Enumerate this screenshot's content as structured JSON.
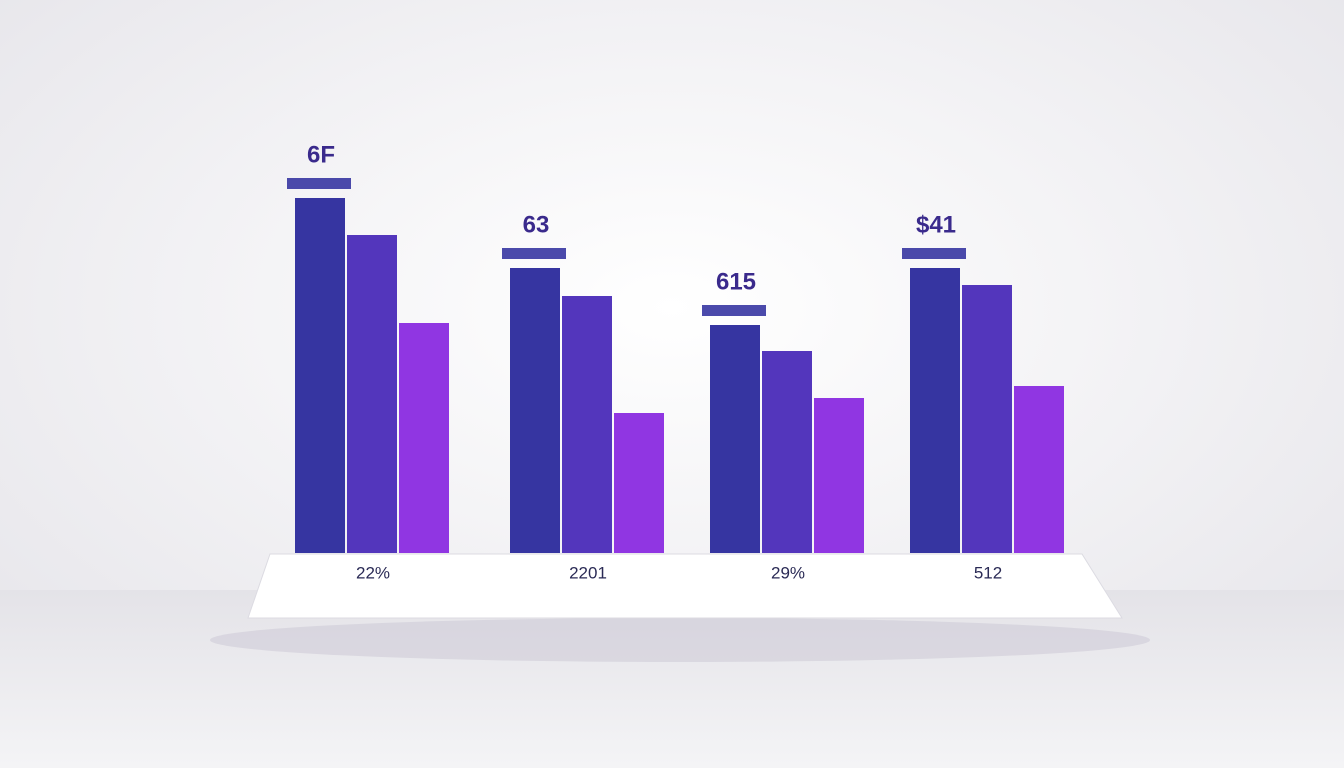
{
  "chart_data": {
    "type": "bar",
    "categories": [
      "22%",
      "2201",
      "29%",
      "512"
    ],
    "annotations": [
      "6F",
      "63",
      "615",
      "$41"
    ],
    "series": [
      {
        "color": "#2b2a9c",
        "values": [
          355,
          285,
          228,
          285
        ]
      },
      {
        "color": "#4a2bb8",
        "values": [
          318,
          257,
          202,
          268
        ]
      },
      {
        "color": "#8a2be0",
        "values": [
          230,
          140,
          155,
          167
        ]
      }
    ],
    "ylim": [
      0,
      360
    ]
  }
}
